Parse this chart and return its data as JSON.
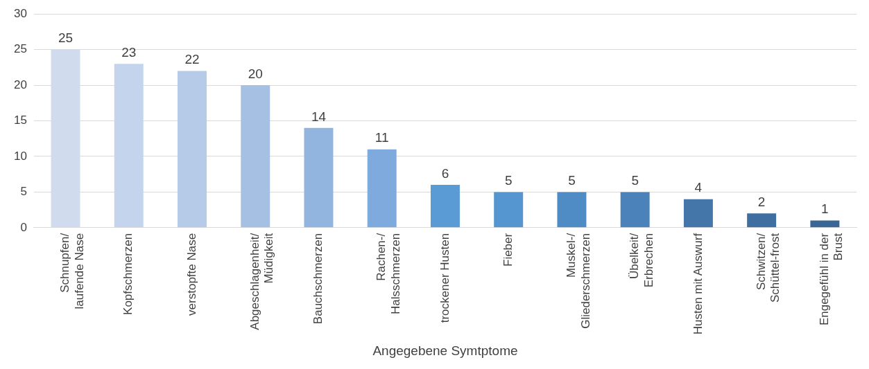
{
  "chart_data": {
    "type": "bar",
    "xlabel": "Angegebene Symtptome",
    "categories": [
      "Schnupfen/ laufende Nase",
      "Kopfschmerzen",
      "verstopfte Nase",
      "Abgeschlagenheit/ Müdigkeit",
      "Bauchschmerzen",
      "Rachen-/ Halsschmerzen",
      "trockener Husten",
      "Fieber",
      "Muskel-/ Gliederschmerzen",
      "Übelkeit/ Erbrechen",
      "Husten mit Auswurf",
      "Schwitzen/ Schüttel-frost",
      "Engegefühl in der Brust"
    ],
    "values": [
      25,
      23,
      22,
      20,
      14,
      11,
      6,
      5,
      5,
      5,
      4,
      2,
      1
    ],
    "colors": [
      "#d0dcee",
      "#c3d4ec",
      "#b5cbe8",
      "#a6c0e3",
      "#92b5e0",
      "#7eaadd",
      "#5b9bd5",
      "#5696d0",
      "#4f8cc5",
      "#4a82b9",
      "#4476aa",
      "#3f6fa0",
      "#3a6696"
    ],
    "ylim": [
      0,
      30
    ],
    "yticks": [
      0,
      5,
      10,
      15,
      20,
      25,
      30
    ],
    "grid": "y",
    "data_labels": true,
    "legend": false
  }
}
